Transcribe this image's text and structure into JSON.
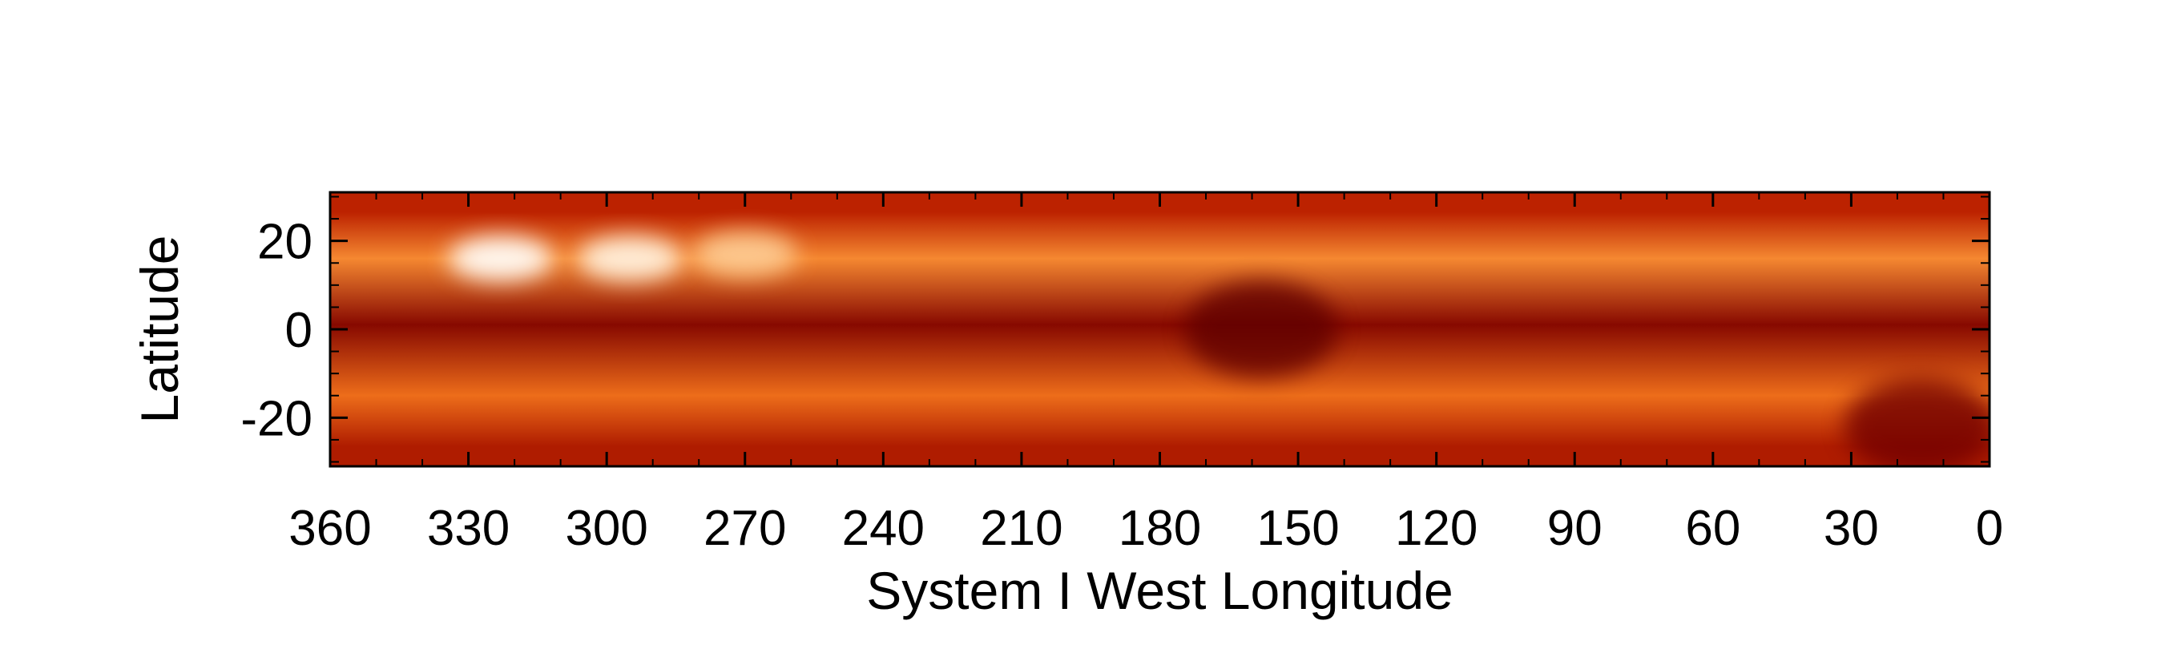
{
  "chart_data": {
    "type": "heatmap",
    "title": "",
    "xlabel": "System I West Longitude",
    "ylabel": "Latitude",
    "xlim": [
      360,
      0
    ],
    "ylim": [
      -31,
      31
    ],
    "x_ticks": [
      360,
      330,
      300,
      270,
      240,
      210,
      180,
      150,
      120,
      90,
      60,
      30,
      0
    ],
    "y_ticks": [
      -20,
      0,
      20
    ],
    "x_tick_labels": [
      "360",
      "330",
      "300",
      "270",
      "240",
      "210",
      "180",
      "150",
      "120",
      "90",
      "60",
      "30",
      "0"
    ],
    "y_tick_labels": [
      "-20",
      "0",
      "20"
    ],
    "colormap": [
      "#5a0000",
      "#8c0a00",
      "#c02400",
      "#e85a0a",
      "#fa9a40",
      "#ffe0b8",
      "#ffffff"
    ],
    "bands": [
      {
        "lat_min": 22,
        "lat_max": 31,
        "intensity": 0.32
      },
      {
        "lat_min": 10,
        "lat_max": 22,
        "intensity": 0.62
      },
      {
        "lat_min": -8,
        "lat_max": 10,
        "intensity": 0.15
      },
      {
        "lat_min": -22,
        "lat_max": -8,
        "intensity": 0.55
      },
      {
        "lat_min": -31,
        "lat_max": -22,
        "intensity": 0.28
      }
    ],
    "features": [
      {
        "lon": 323,
        "lat": 16,
        "intensity": 0.98,
        "label": "bright spot"
      },
      {
        "lon": 295,
        "lat": 16,
        "intensity": 0.92,
        "label": "bright spot"
      },
      {
        "lon": 270,
        "lat": 17,
        "intensity": 0.78,
        "label": "bright spot"
      },
      {
        "lon": 158,
        "lat": 0,
        "intensity": 0.02,
        "label": "dark region"
      },
      {
        "lon": 15,
        "lat": -22,
        "intensity": 0.08,
        "label": "dark oval"
      }
    ]
  }
}
